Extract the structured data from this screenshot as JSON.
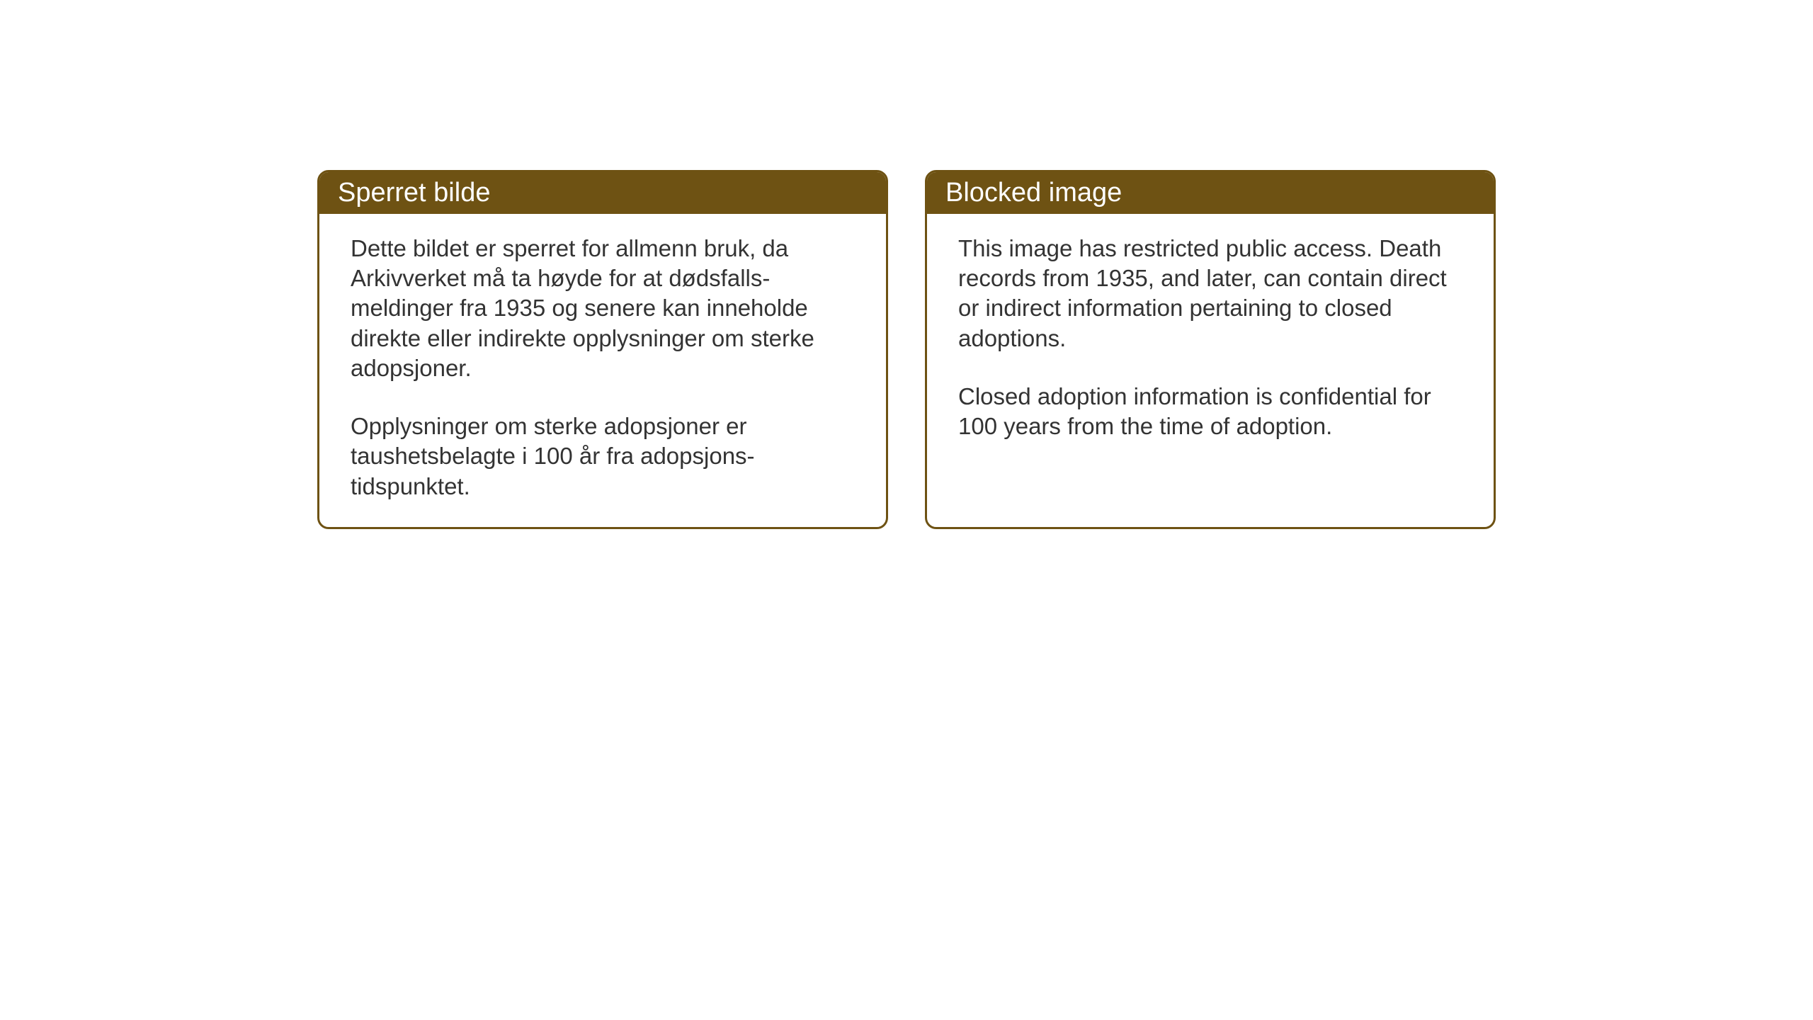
{
  "layout": {
    "background_color": "#ffffff",
    "box_border_color": "#6e5213",
    "header_bg_color": "#6e5213",
    "header_text_color": "#ffffff",
    "body_text_color": "#333333",
    "header_fontsize": 38,
    "body_fontsize": 33,
    "border_radius": 16,
    "border_width": 3,
    "gap": 52
  },
  "boxes": [
    {
      "title": "Sperret bilde",
      "paragraphs": [
        "Dette bildet er sperret for allmenn bruk, da Arkivverket må ta høyde for at dødsfalls-meldinger fra 1935 og senere kan inneholde direkte eller indirekte opplysninger om sterke adopsjoner.",
        "Opplysninger om sterke adopsjoner er taushetsbelagte i 100 år fra adopsjons-tidspunktet."
      ]
    },
    {
      "title": "Blocked image",
      "paragraphs": [
        "This image has restricted public access. Death records from 1935, and later, can contain direct or indirect information pertaining to closed adoptions.",
        "Closed adoption information is confidential for 100 years from the time of adoption."
      ]
    }
  ]
}
